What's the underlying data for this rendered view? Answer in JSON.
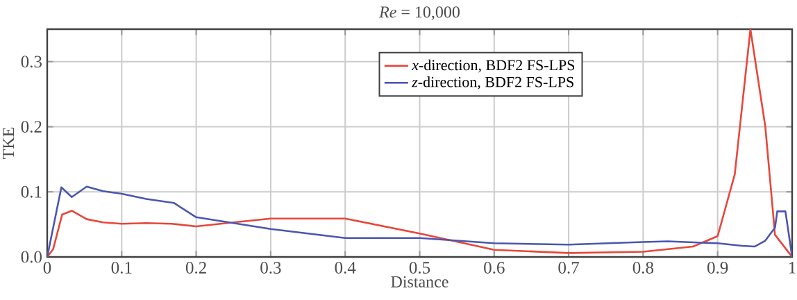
{
  "chart_data": {
    "type": "line",
    "title": "*Re* = 10,000",
    "xlabel": "Distance",
    "ylabel": "TKE",
    "xlim": [
      0,
      1
    ],
    "ylim": [
      0,
      0.35
    ],
    "xticks": [
      0,
      0.1,
      0.2,
      0.3,
      0.4,
      0.5,
      0.6,
      0.7,
      0.8,
      0.9,
      1
    ],
    "yticks": [
      {
        "value": 0,
        "label": "0.0"
      },
      0.1,
      0.2,
      0.3
    ],
    "grid": true,
    "legend": "top right",
    "series": [
      {
        "name": "*x*-direction, BDF2 FS-LPS",
        "color": "#e8463a",
        "x": [
          0,
          0.008,
          0.02,
          0.033,
          0.053,
          0.075,
          0.1,
          0.133,
          0.167,
          0.2,
          0.25,
          0.3,
          0.4,
          0.5,
          0.6,
          0.7,
          0.8,
          0.867,
          0.9,
          0.923,
          0.944,
          0.964,
          0.977,
          1.0
        ],
        "values": [
          0,
          0.012,
          0.065,
          0.071,
          0.058,
          0.053,
          0.051,
          0.052,
          0.051,
          0.047,
          0.053,
          0.059,
          0.059,
          0.036,
          0.011,
          0.006,
          0.008,
          0.016,
          0.032,
          0.127,
          0.35,
          0.2,
          0.034,
          0
        ]
      },
      {
        "name": "*z*-direction, BDF2 FS-LPS",
        "color": "#4a56b0",
        "x": [
          0,
          0.019,
          0.033,
          0.053,
          0.075,
          0.1,
          0.133,
          0.17,
          0.2,
          0.3,
          0.4,
          0.5,
          0.6,
          0.7,
          0.8,
          0.833,
          0.9,
          0.933,
          0.95,
          0.964,
          0.977,
          0.98,
          0.991,
          1.0
        ],
        "values": [
          0,
          0.107,
          0.092,
          0.108,
          0.101,
          0.097,
          0.089,
          0.083,
          0.061,
          0.043,
          0.029,
          0.029,
          0.021,
          0.019,
          0.023,
          0.024,
          0.021,
          0.017,
          0.016,
          0.025,
          0.045,
          0.07,
          0.07,
          0
        ]
      }
    ]
  }
}
